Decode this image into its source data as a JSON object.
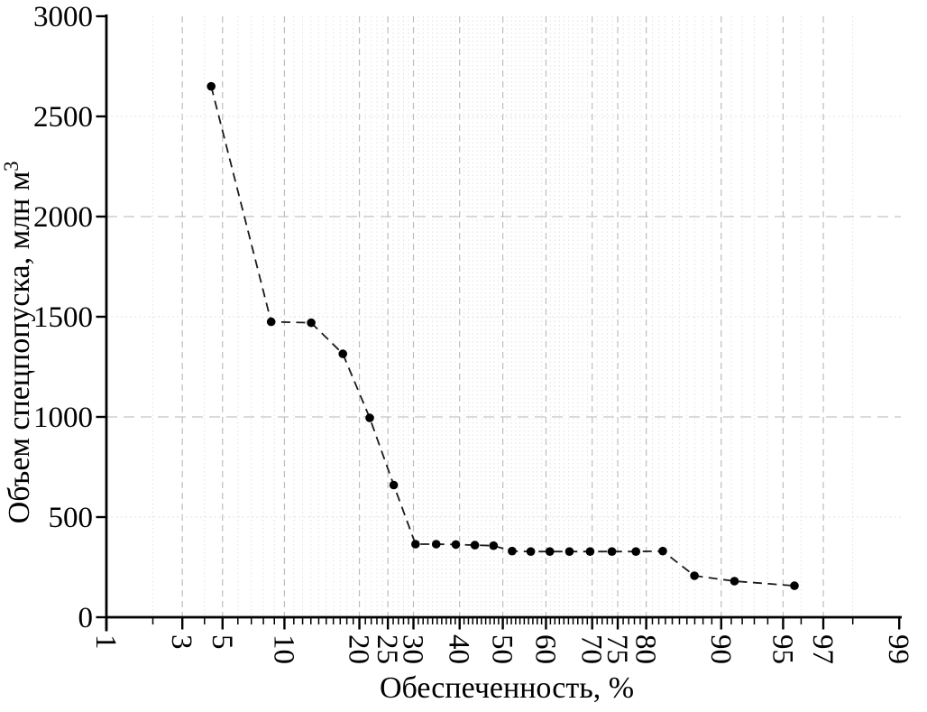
{
  "chart_data": {
    "type": "line",
    "title": "",
    "xlabel": "Обеспеченность, %",
    "ylabel": "Объем спецпопуска, млн м",
    "ylabel_superscript": "3",
    "x_scale": "normal-probability",
    "xlim": [
      1,
      99
    ],
    "ylim": [
      0,
      3000
    ],
    "x_ticks_labeled": [
      1,
      3,
      5,
      10,
      20,
      25,
      30,
      40,
      50,
      60,
      70,
      75,
      80,
      90,
      95,
      97,
      99
    ],
    "x_ticks_minor": "every integer 2-98",
    "y_ticks_labeled": [
      0,
      500,
      1000,
      1500,
      2000,
      2500,
      3000
    ],
    "grid": {
      "vertical_dashed_at_labeled_ticks": true,
      "vertical_dotted_at_integer_ticks": true,
      "horizontal_dashed": [
        1000,
        2000
      ],
      "horizontal_dotted": [
        500,
        1500,
        2500
      ]
    },
    "legend": "none",
    "line": {
      "style": "dashed",
      "color": "#1a1a1a"
    },
    "marker": {
      "shape": "filled-circle",
      "color": "#000000",
      "radius_px": 4.8
    },
    "colors": {
      "axis": "#000000",
      "major_grid": "#bdbdbd",
      "minor_grid": "#e1e1e1"
    },
    "series": [
      {
        "x": [
          4.35,
          8.7,
          13.04,
          17.39,
          21.74,
          26.09,
          30.43,
          34.78,
          39.13,
          43.48,
          47.83,
          52.17,
          56.52,
          60.87,
          65.22,
          69.57,
          73.91,
          78.26,
          82.61,
          86.96,
          91.3,
          95.65
        ],
        "y": [
          2650,
          1475,
          1470,
          1315,
          995,
          660,
          365,
          365,
          363,
          360,
          357,
          330,
          328,
          328,
          328,
          328,
          328,
          328,
          330,
          207,
          180,
          157
        ]
      }
    ]
  }
}
